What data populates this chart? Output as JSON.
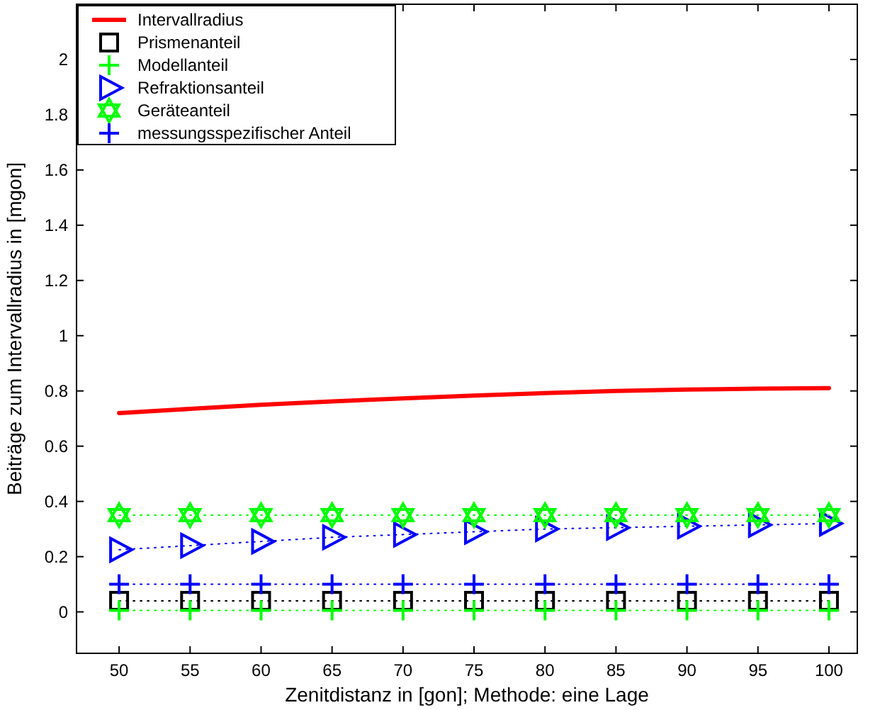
{
  "chart_data": {
    "type": "line",
    "xlabel": "Zenitdistanz in [gon]; Methode: eine Lage",
    "ylabel": "Beiträge zum Intervallradius in [mgon]",
    "x": [
      50,
      55,
      60,
      65,
      70,
      75,
      80,
      85,
      90,
      95,
      100
    ],
    "xlim": [
      47,
      102
    ],
    "xticks": [
      50,
      55,
      60,
      65,
      70,
      75,
      80,
      85,
      90,
      95,
      100
    ],
    "ylim": [
      -0.15,
      2.2
    ],
    "yticks": [
      0,
      0.2,
      0.4,
      0.6,
      0.8,
      1,
      1.2,
      1.4,
      1.6,
      1.8,
      2
    ],
    "grid": false,
    "legend": "top left",
    "series": [
      {
        "name": "Intervallradius",
        "color": "#ff0000",
        "marker": "none",
        "line_style": "solid",
        "values": [
          0.72,
          0.735,
          0.75,
          0.762,
          0.773,
          0.783,
          0.792,
          0.8,
          0.805,
          0.808,
          0.81
        ]
      },
      {
        "name": "Prismenanteil",
        "color": "#000000",
        "marker": "square",
        "line_style": "dotted",
        "values": [
          0.04,
          0.04,
          0.04,
          0.04,
          0.04,
          0.04,
          0.04,
          0.04,
          0.04,
          0.04,
          0.04
        ]
      },
      {
        "name": "Modellanteil",
        "color": "#00ff00",
        "marker": "cross",
        "line_style": "dotted",
        "values": [
          0.005,
          0.005,
          0.005,
          0.005,
          0.005,
          0.005,
          0.005,
          0.005,
          0.005,
          0.005,
          0.005
        ]
      },
      {
        "name": "Refraktionsanteil",
        "color": "#0000ff",
        "marker": "triangle",
        "line_style": "dotted",
        "values": [
          0.225,
          0.24,
          0.255,
          0.27,
          0.28,
          0.29,
          0.3,
          0.305,
          0.31,
          0.315,
          0.32
        ]
      },
      {
        "name": "Geräteanteil",
        "color": "#00ff00",
        "marker": "star",
        "line_style": "dotted",
        "values": [
          0.35,
          0.35,
          0.35,
          0.35,
          0.35,
          0.35,
          0.35,
          0.35,
          0.35,
          0.35,
          0.35
        ]
      },
      {
        "name": "messungsspezifischer Anteil",
        "color": "#0000ff",
        "marker": "cross",
        "line_style": "dotted",
        "values": [
          0.1,
          0.1,
          0.1,
          0.1,
          0.1,
          0.1,
          0.1,
          0.1,
          0.1,
          0.1,
          0.1
        ]
      }
    ]
  }
}
